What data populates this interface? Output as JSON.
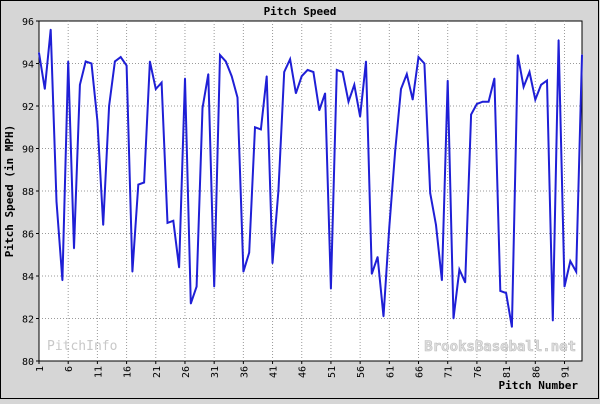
{
  "chart_data": {
    "type": "line",
    "title": "Pitch Speed",
    "ylabel": "Pitch Speed (in MPH)",
    "xlabel": "Pitch Number",
    "ylim": [
      80,
      96
    ],
    "xlim": [
      1,
      94
    ],
    "yticks": [
      80,
      82,
      84,
      86,
      88,
      90,
      92,
      94,
      96
    ],
    "xticks": [
      1,
      6,
      11,
      16,
      21,
      26,
      31,
      36,
      41,
      46,
      51,
      56,
      61,
      66,
      71,
      76,
      81,
      86,
      91
    ],
    "grid": true,
    "series": [
      {
        "name": "",
        "color": "#1f1fd6",
        "x": [
          1,
          2,
          3,
          4,
          5,
          6,
          7,
          8,
          9,
          10,
          11,
          12,
          13,
          14,
          15,
          16,
          17,
          18,
          19,
          20,
          21,
          22,
          23,
          24,
          25,
          26,
          27,
          28,
          29,
          30,
          31,
          32,
          33,
          34,
          35,
          36,
          37,
          38,
          39,
          40,
          41,
          42,
          43,
          44,
          45,
          46,
          47,
          48,
          49,
          50,
          51,
          52,
          53,
          54,
          55,
          56,
          57,
          58,
          59,
          60,
          61,
          62,
          63,
          64,
          65,
          66,
          67,
          68,
          69,
          70,
          71,
          72,
          73,
          74,
          75,
          76,
          77,
          78,
          79,
          80,
          81,
          82,
          83,
          84,
          85,
          86,
          87,
          88,
          89,
          90,
          91,
          92,
          93,
          94
        ],
        "y": [
          94.5,
          92.8,
          95.6,
          87.5,
          83.8,
          94.1,
          85.3,
          93.0,
          94.1,
          94.0,
          91.3,
          86.4,
          92.0,
          94.1,
          94.3,
          93.9,
          84.2,
          88.3,
          88.4,
          94.1,
          92.8,
          93.1,
          86.5,
          86.6,
          84.4,
          93.3,
          82.7,
          83.5,
          91.9,
          93.5,
          83.5,
          94.4,
          94.1,
          93.4,
          92.4,
          84.2,
          85.1,
          91.0,
          90.9,
          93.4,
          84.6,
          88.0,
          93.6,
          94.2,
          92.6,
          93.4,
          93.7,
          93.6,
          91.8,
          92.6,
          83.4,
          93.7,
          93.6,
          92.2,
          93.0,
          91.5,
          94.1,
          84.1,
          84.9,
          82.1,
          86.3,
          89.9,
          92.8,
          93.5,
          92.3,
          94.3,
          94.0,
          87.9,
          86.4,
          83.8,
          93.2,
          82.0,
          84.3,
          83.7,
          91.6,
          92.1,
          92.2,
          92.2,
          93.3,
          83.3,
          83.2,
          81.6,
          94.4,
          92.9,
          93.6,
          92.3,
          93.0,
          93.2,
          81.9,
          95.1,
          83.5,
          84.7,
          84.2,
          94.4
        ]
      }
    ]
  },
  "watermarks": {
    "left": "PitchInfo",
    "right": "BrooksBaseball.net"
  }
}
